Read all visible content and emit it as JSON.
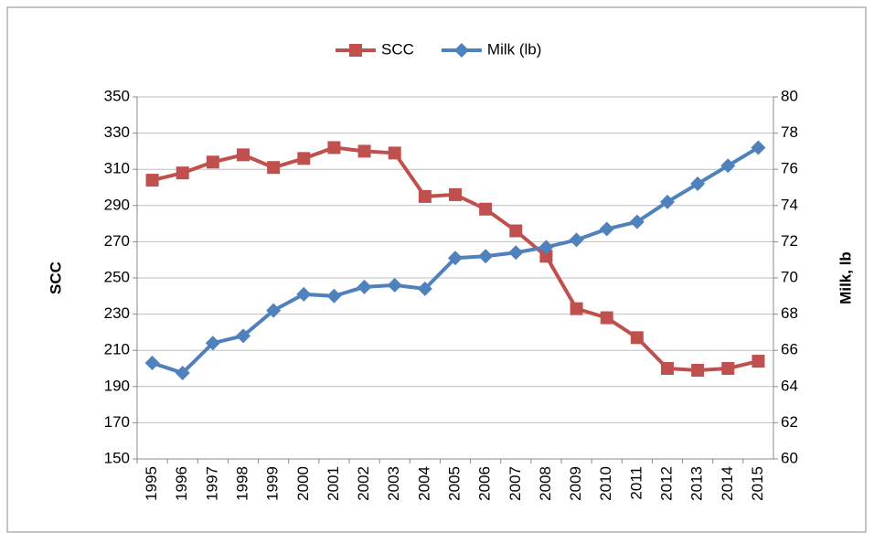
{
  "chart_data": {
    "type": "line",
    "x": [
      "1995",
      "1996",
      "1997",
      "1998",
      "1999",
      "2000",
      "2001",
      "2002",
      "2003",
      "2004",
      "2005",
      "2006",
      "2007",
      "2008",
      "2009",
      "2010",
      "2011",
      "2012",
      "2013",
      "2014",
      "2015"
    ],
    "y_label": "SCC",
    "y2_label": "Milk, lb",
    "ylim": [
      150,
      350
    ],
    "yticks": [
      150,
      170,
      190,
      210,
      230,
      250,
      270,
      290,
      310,
      330,
      350
    ],
    "y2lim": [
      60,
      80
    ],
    "y2ticks": [
      60,
      62,
      64,
      66,
      68,
      70,
      72,
      74,
      76,
      78,
      80
    ],
    "grid": true,
    "legend": "top",
    "series": [
      {
        "name": "SCC",
        "color": "#c0504d",
        "marker": "square",
        "values": [
          304,
          308,
          314,
          318,
          311,
          316,
          322,
          320,
          319,
          295,
          296,
          288,
          276,
          262,
          233,
          228,
          217,
          200,
          199,
          200,
          204
        ]
      },
      {
        "name": "Milk (lb)",
        "color": "#4f81bd",
        "marker": "diamond",
        "axis": "y2",
        "values": [
          65.3,
          64.75,
          66.4,
          66.8,
          68.2,
          69.1,
          69.0,
          69.5,
          69.6,
          69.4,
          71.1,
          71.2,
          71.4,
          71.7,
          72.1,
          72.7,
          73.1,
          74.2,
          75.2,
          76.2,
          77.2
        ]
      }
    ]
  }
}
